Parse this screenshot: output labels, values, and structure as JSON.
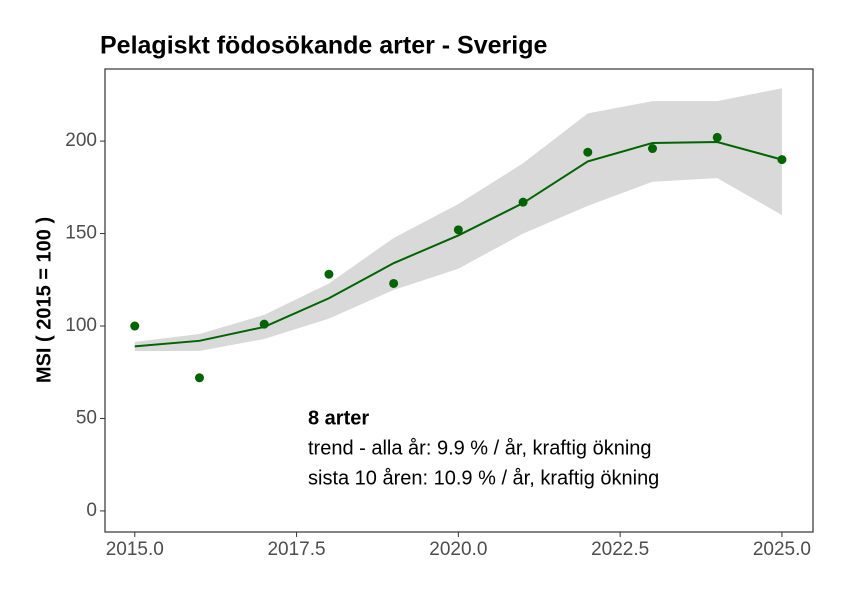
{
  "chart_data": {
    "type": "line",
    "title": "Pelagiskt födosökande arter - Sverige",
    "y_label": "MSI ( 2015 = 100 )",
    "x": [
      2015,
      2016,
      2017,
      2018,
      2019,
      2020,
      2021,
      2022,
      2023,
      2024,
      2025
    ],
    "points": [
      100,
      72,
      101,
      128,
      123,
      152,
      167,
      194,
      196,
      202,
      190
    ],
    "trend": [
      89,
      92,
      99.5,
      115,
      134,
      149,
      166.5,
      189,
      199,
      199.5,
      190
    ],
    "upper": [
      91.4,
      95.7,
      106,
      123,
      147.6,
      166,
      188,
      215,
      221.6,
      221.6,
      228.6
    ],
    "lower": [
      86.5,
      86.5,
      93,
      104,
      119.5,
      131,
      150,
      165,
      178,
      180,
      160
    ],
    "color": "#006400",
    "band_color": "#d9d9d9",
    "xlim": [
      2014.54,
      2025.48
    ],
    "ylim": [
      -11.4,
      239
    ],
    "xticks": [
      {
        "value": 2015,
        "label": "2015.0"
      },
      {
        "value": 2017.5,
        "label": "2017.5"
      },
      {
        "value": 2020,
        "label": "2020.0"
      },
      {
        "value": 2022.5,
        "label": "2022.5"
      },
      {
        "value": 2025,
        "label": "2025.0"
      }
    ],
    "yticks": [
      0,
      50,
      100,
      150,
      200
    ],
    "annotations": [
      "8 arter",
      "trend - alla år: 9.9 % / år, kraftig ökning",
      "sista 10 åren: 10.9 % / år, kraftig ökning"
    ]
  }
}
